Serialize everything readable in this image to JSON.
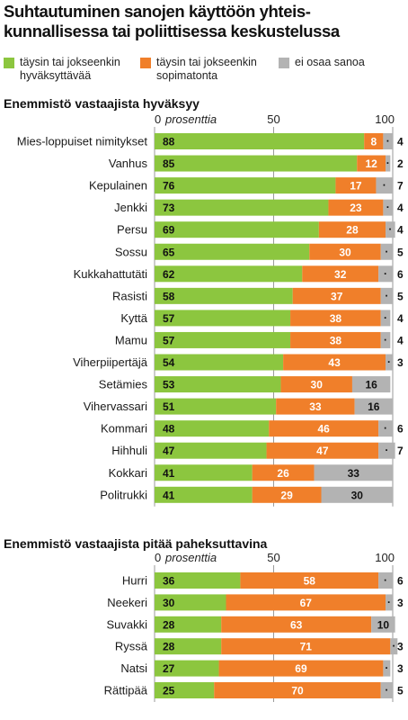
{
  "title_lines": [
    "Suhtautuminen sanojen käyttöön yhteis-",
    "kunnallisessa tai poliittisessa keskustelussa"
  ],
  "legend": [
    {
      "label": "täysin tai jokseenkin\nhyväksyttävää",
      "color": "#8cc63f"
    },
    {
      "label": "täysin tai jokseenkin\nsopimatonta",
      "color": "#f07f2a"
    },
    {
      "label": "ei osaa sanoa",
      "color": "#b3b3b3"
    }
  ],
  "colors": {
    "accept": "#8cc63f",
    "reject": "#f07f2a",
    "unsure": "#b3b3b3",
    "grid": "#9a9a9a"
  },
  "chart_data": [
    {
      "type": "bar",
      "stacked": true,
      "orientation": "horizontal",
      "title": "Enemmistö vastaajista hyväksyy",
      "xlabel": "prosenttia",
      "xlim": [
        0,
        100
      ],
      "ticks": [
        0,
        50,
        100
      ],
      "grid": true,
      "categories": [
        "Mies-loppuiset nimitykset",
        "Vanhus",
        "Kepulainen",
        "Jenkki",
        "Persu",
        "Sossu",
        "Kukkahattutäti",
        "Rasisti",
        "Kyttä",
        "Mamu",
        "Viherpiipertäjä",
        "Setämies",
        "Vihervassari",
        "Kommari",
        "Hihhuli",
        "Kokkari",
        "Politrukki"
      ],
      "series": [
        {
          "name": "täysin tai jokseenkin hyväksyttävää",
          "values": [
            88,
            85,
            76,
            73,
            69,
            65,
            62,
            58,
            57,
            57,
            54,
            53,
            51,
            48,
            47,
            41,
            41
          ]
        },
        {
          "name": "täysin tai jokseenkin sopimatonta",
          "values": [
            8,
            12,
            17,
            23,
            28,
            30,
            32,
            37,
            38,
            38,
            43,
            30,
            33,
            46,
            47,
            26,
            29
          ]
        },
        {
          "name": "ei osaa sanoa",
          "values": [
            4,
            2,
            7,
            4,
            4,
            5,
            6,
            5,
            4,
            4,
            3,
            16,
            16,
            6,
            7,
            33,
            30
          ]
        }
      ]
    },
    {
      "type": "bar",
      "stacked": true,
      "orientation": "horizontal",
      "title": "Enemmistö vastaajista pitää paheksuttavina",
      "xlabel": "prosenttia",
      "xlim": [
        0,
        100
      ],
      "ticks": [
        0,
        50,
        100
      ],
      "grid": true,
      "categories": [
        "Hurri",
        "Neekeri",
        "Suvakki",
        "Ryssä",
        "Natsi",
        "Rättipää"
      ],
      "series": [
        {
          "name": "täysin tai jokseenkin hyväksyttävää",
          "values": [
            36,
            30,
            28,
            28,
            27,
            25
          ]
        },
        {
          "name": "täysin tai jokseenkin sopimatonta",
          "values": [
            58,
            67,
            63,
            71,
            69,
            70
          ]
        },
        {
          "name": "ei osaa sanoa",
          "values": [
            6,
            3,
            10,
            3,
            3,
            5
          ]
        }
      ]
    }
  ]
}
